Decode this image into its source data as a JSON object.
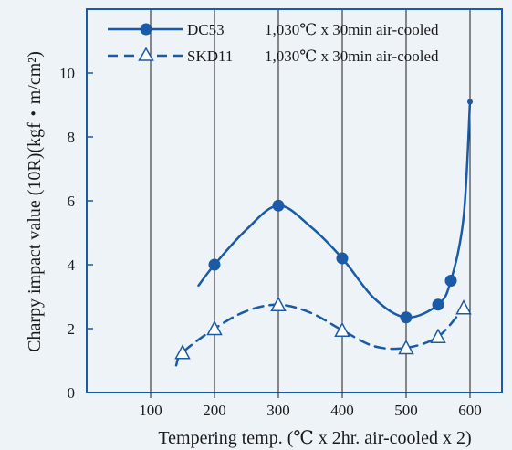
{
  "chart_data": {
    "type": "line",
    "xlabel": "Tempering temp. (℃ x 2hr. air-cooled x 2)",
    "ylabel": "Charpy impact value (10R)(kgf・m/cm²)",
    "xlim": [
      0,
      650
    ],
    "ylim": [
      0,
      12
    ],
    "x_ticks": [
      100,
      200,
      300,
      400,
      500,
      600
    ],
    "y_ticks": [
      0,
      2,
      4,
      6,
      8,
      10
    ],
    "x_tick_labels": [
      "100",
      "200",
      "300",
      "400",
      "500",
      "600"
    ],
    "y_tick_labels": [
      "0",
      "2",
      "4",
      "6",
      "8",
      "10"
    ],
    "grid": "vertical",
    "legend_position": "top",
    "series": [
      {
        "name": "DC53",
        "condition": "1,030℃ x 30min air-cooled",
        "marker": "filled-circle",
        "line_style": "solid",
        "color": "#1a5aa6",
        "points": [
          {
            "x": 200,
            "y": 4.0
          },
          {
            "x": 300,
            "y": 5.85
          },
          {
            "x": 400,
            "y": 4.2
          },
          {
            "x": 500,
            "y": 2.35
          },
          {
            "x": 550,
            "y": 2.75
          },
          {
            "x": 570,
            "y": 3.5
          },
          {
            "x": 600,
            "y": 9.1
          }
        ],
        "curve": [
          {
            "x": 175,
            "y": 3.35
          },
          {
            "x": 200,
            "y": 4.0
          },
          {
            "x": 250,
            "y": 5.1
          },
          {
            "x": 300,
            "y": 5.85
          },
          {
            "x": 350,
            "y": 5.2
          },
          {
            "x": 400,
            "y": 4.2
          },
          {
            "x": 450,
            "y": 2.95
          },
          {
            "x": 500,
            "y": 2.35
          },
          {
            "x": 550,
            "y": 2.75
          },
          {
            "x": 570,
            "y": 3.5
          },
          {
            "x": 590,
            "y": 5.5
          },
          {
            "x": 600,
            "y": 9.1
          }
        ]
      },
      {
        "name": "SKD11",
        "condition": "1,030℃ x 30min air-cooled",
        "marker": "open-triangle",
        "line_style": "dashed",
        "color": "#1a5aa6",
        "points": [
          {
            "x": 150,
            "y": 1.25
          },
          {
            "x": 200,
            "y": 2.0
          },
          {
            "x": 300,
            "y": 2.75
          },
          {
            "x": 400,
            "y": 1.95
          },
          {
            "x": 500,
            "y": 1.4
          },
          {
            "x": 550,
            "y": 1.75
          },
          {
            "x": 590,
            "y": 2.65
          }
        ],
        "curve": [
          {
            "x": 140,
            "y": 0.85
          },
          {
            "x": 150,
            "y": 1.25
          },
          {
            "x": 200,
            "y": 2.0
          },
          {
            "x": 250,
            "y": 2.55
          },
          {
            "x": 300,
            "y": 2.75
          },
          {
            "x": 350,
            "y": 2.5
          },
          {
            "x": 400,
            "y": 1.95
          },
          {
            "x": 450,
            "y": 1.45
          },
          {
            "x": 500,
            "y": 1.4
          },
          {
            "x": 550,
            "y": 1.75
          },
          {
            "x": 590,
            "y": 2.65
          }
        ]
      }
    ]
  }
}
